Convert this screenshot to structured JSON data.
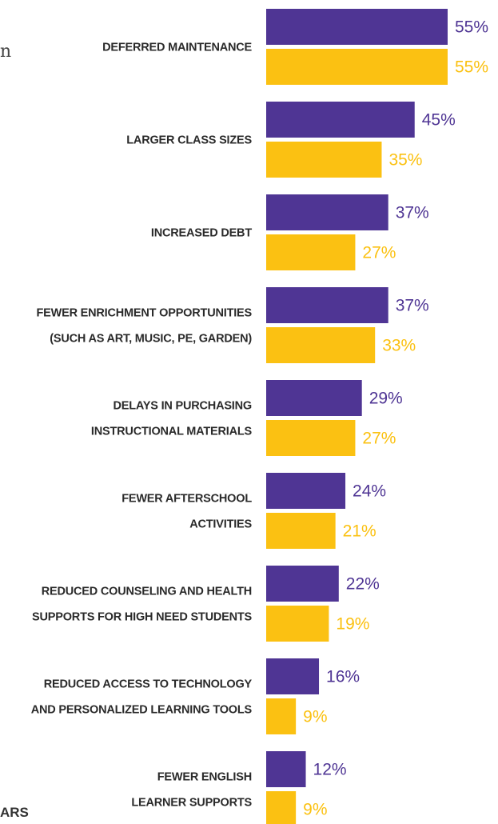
{
  "fragments": {
    "top_left": "n",
    "bottom_left": "ARS"
  },
  "chart_data": {
    "type": "bar",
    "orientation": "horizontal",
    "categories": [
      [
        "DEFERRED MAINTENANCE"
      ],
      [
        "LARGER CLASS SIZES"
      ],
      [
        "INCREASED DEBT"
      ],
      [
        "FEWER ENRICHMENT OPPORTUNITIES",
        "(SUCH AS ART, MUSIC, PE, GARDEN)"
      ],
      [
        "DELAYS IN PURCHASING",
        "INSTRUCTIONAL MATERIALS"
      ],
      [
        "FEWER AFTERSCHOOL",
        "ACTIVITIES"
      ],
      [
        "REDUCED COUNSELING AND HEALTH",
        "SUPPORTS FOR HIGH NEED STUDENTS"
      ],
      [
        "REDUCED ACCESS TO TECHNOLOGY",
        "AND PERSONALIZED LEARNING TOOLS"
      ],
      [
        "FEWER ENGLISH",
        "LEARNER SUPPORTS"
      ]
    ],
    "series": [
      {
        "color": "#4f3594",
        "values": [
          55,
          45,
          37,
          37,
          29,
          24,
          22,
          16,
          12
        ],
        "labels": [
          "55%",
          "45%",
          "37%",
          "37%",
          "29%",
          "24%",
          "22%",
          "16%",
          "12%"
        ]
      },
      {
        "color": "#fbc112",
        "values": [
          55,
          35,
          27,
          33,
          27,
          21,
          19,
          9,
          9
        ],
        "labels": [
          "55%",
          "35%",
          "27%",
          "33%",
          "27%",
          "21%",
          "19%",
          "9%",
          "9%"
        ]
      }
    ],
    "xlim": [
      0,
      55
    ],
    "grid": false,
    "legend": "none"
  }
}
